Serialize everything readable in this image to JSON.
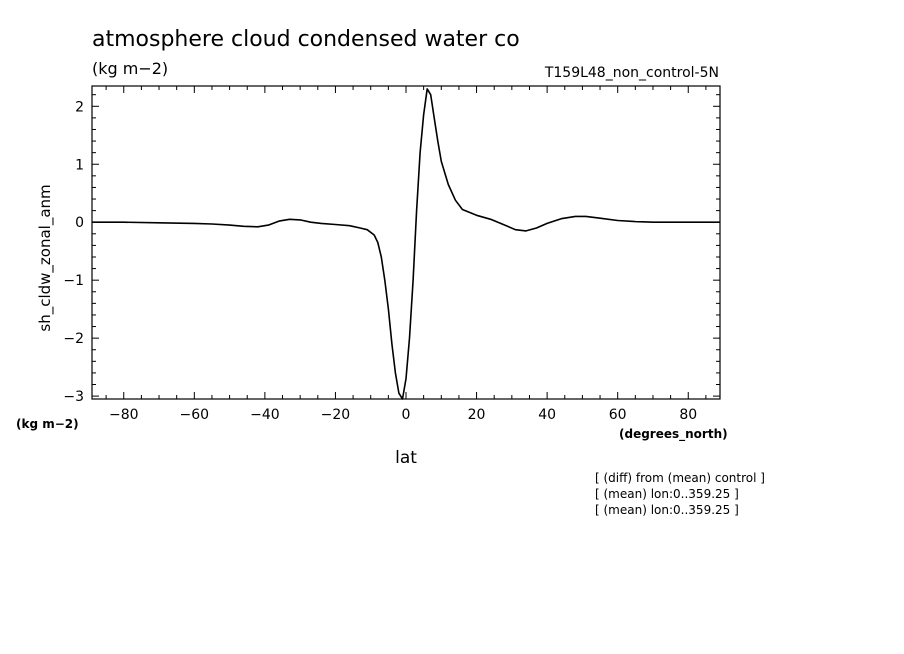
{
  "chart_data": {
    "type": "line",
    "title": "atmosphere cloud condensed water co",
    "units": "(kg m−2)",
    "experiment": "T159L48_non_control-5N",
    "ylabel": "sh_cldw_zonal_anm",
    "xlabel": "lat",
    "x_units": "(degrees_north)",
    "y_units": "(kg m−2)",
    "xlim": [
      -89,
      89
    ],
    "ylim": [
      -3.05,
      2.35
    ],
    "x_ticks": [
      -80,
      -60,
      -40,
      -20,
      0,
      20,
      40,
      60,
      80
    ],
    "x_tick_labels": [
      "−80",
      "−60",
      "−40",
      "−20",
      "0",
      "20",
      "40",
      "60",
      "80"
    ],
    "y_ticks": [
      -3,
      -2,
      -1,
      0,
      1,
      2
    ],
    "y_tick_labels": [
      "−3",
      "−2",
      "−1",
      "0",
      "1",
      "2"
    ],
    "grid": false,
    "notes": [
      "[ (diff) from (mean) control ]",
      "[ (mean) lon:0..359.25 ]",
      "[ (mean) lon:0..359.25 ]"
    ],
    "series": [
      {
        "x": [
          -89,
          -80,
          -70,
          -60,
          -55,
          -50,
          -46,
          -42,
          -39,
          -36,
          -33,
          -30,
          -27,
          -24,
          -20,
          -16,
          -13,
          -11,
          -9,
          -8,
          -7,
          -6,
          -5,
          -4,
          -3,
          -2,
          -1,
          0,
          1,
          2,
          3,
          4,
          5,
          6,
          7,
          8,
          9,
          10,
          12,
          14,
          16,
          20,
          24,
          28,
          31,
          34,
          37,
          40,
          44,
          48,
          51,
          55,
          60,
          65,
          70,
          80,
          89
        ],
        "y": [
          0,
          0,
          -0.01,
          -0.02,
          -0.03,
          -0.05,
          -0.07,
          -0.08,
          -0.05,
          0.02,
          0.05,
          0.04,
          0.0,
          -0.02,
          -0.04,
          -0.06,
          -0.1,
          -0.13,
          -0.22,
          -0.35,
          -0.6,
          -1.0,
          -1.5,
          -2.1,
          -2.6,
          -2.95,
          -3.05,
          -2.7,
          -2.0,
          -1.0,
          0.2,
          1.2,
          1.85,
          2.3,
          2.2,
          1.8,
          1.4,
          1.05,
          0.65,
          0.38,
          0.22,
          0.12,
          0.05,
          -0.05,
          -0.13,
          -0.15,
          -0.1,
          -0.02,
          0.06,
          0.1,
          0.1,
          0.07,
          0.03,
          0.01,
          0.0,
          0.0,
          0.0
        ]
      }
    ]
  }
}
